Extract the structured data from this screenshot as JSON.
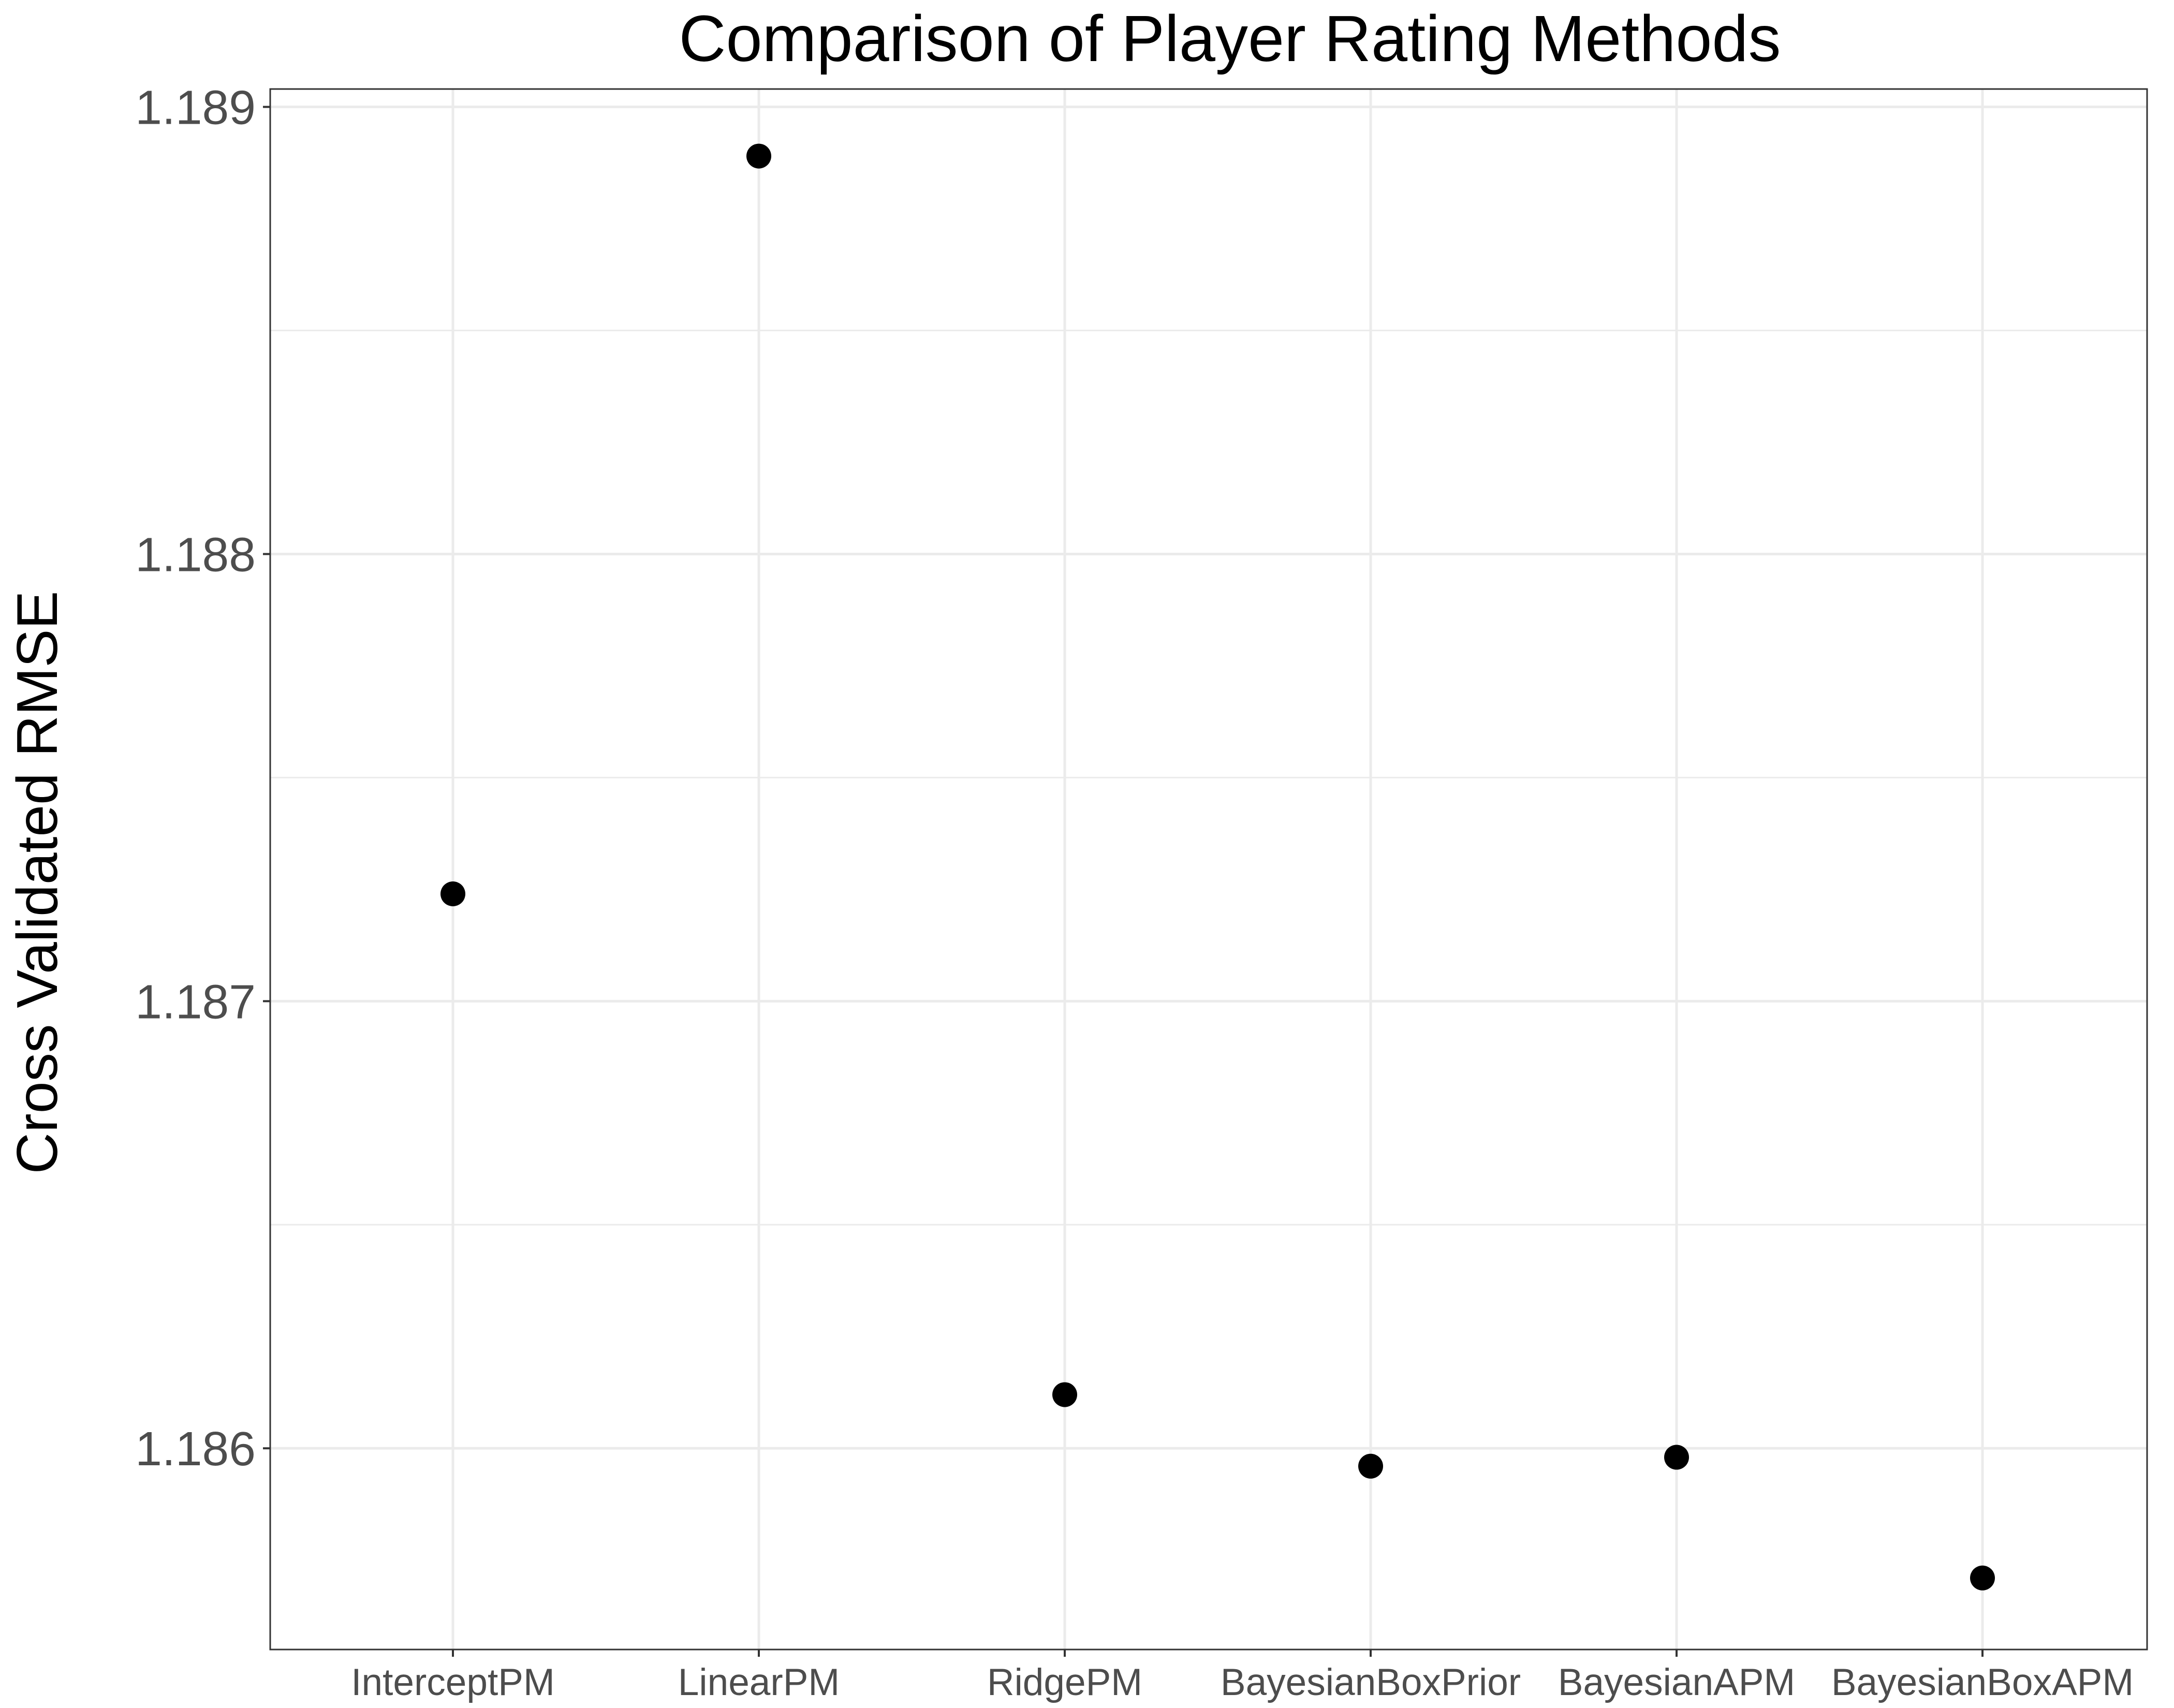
{
  "chart_data": {
    "type": "scatter",
    "title": "Comparison of Player Rating Methods",
    "xlabel": "",
    "ylabel": "Cross Validated RMSE",
    "categories": [
      "InterceptPM",
      "LinearPM",
      "RidgePM",
      "BayesianBoxPrior",
      "BayesianAPM",
      "BayesianBoxAPM"
    ],
    "values": [
      1.18724,
      1.18889,
      1.18612,
      1.18596,
      1.18598,
      1.18571
    ],
    "ylim": [
      1.18555,
      1.18904
    ],
    "yticks": [
      1.186,
      1.187,
      1.188,
      1.189
    ],
    "ytick_labels": [
      "1.186",
      "1.187",
      "1.188",
      "1.189"
    ],
    "grid": true,
    "legend": "none",
    "colors": {
      "point": "#000000",
      "grid": "#ebebeb",
      "panel_border": "#333333",
      "tick_text": "#4d4d4d"
    }
  }
}
